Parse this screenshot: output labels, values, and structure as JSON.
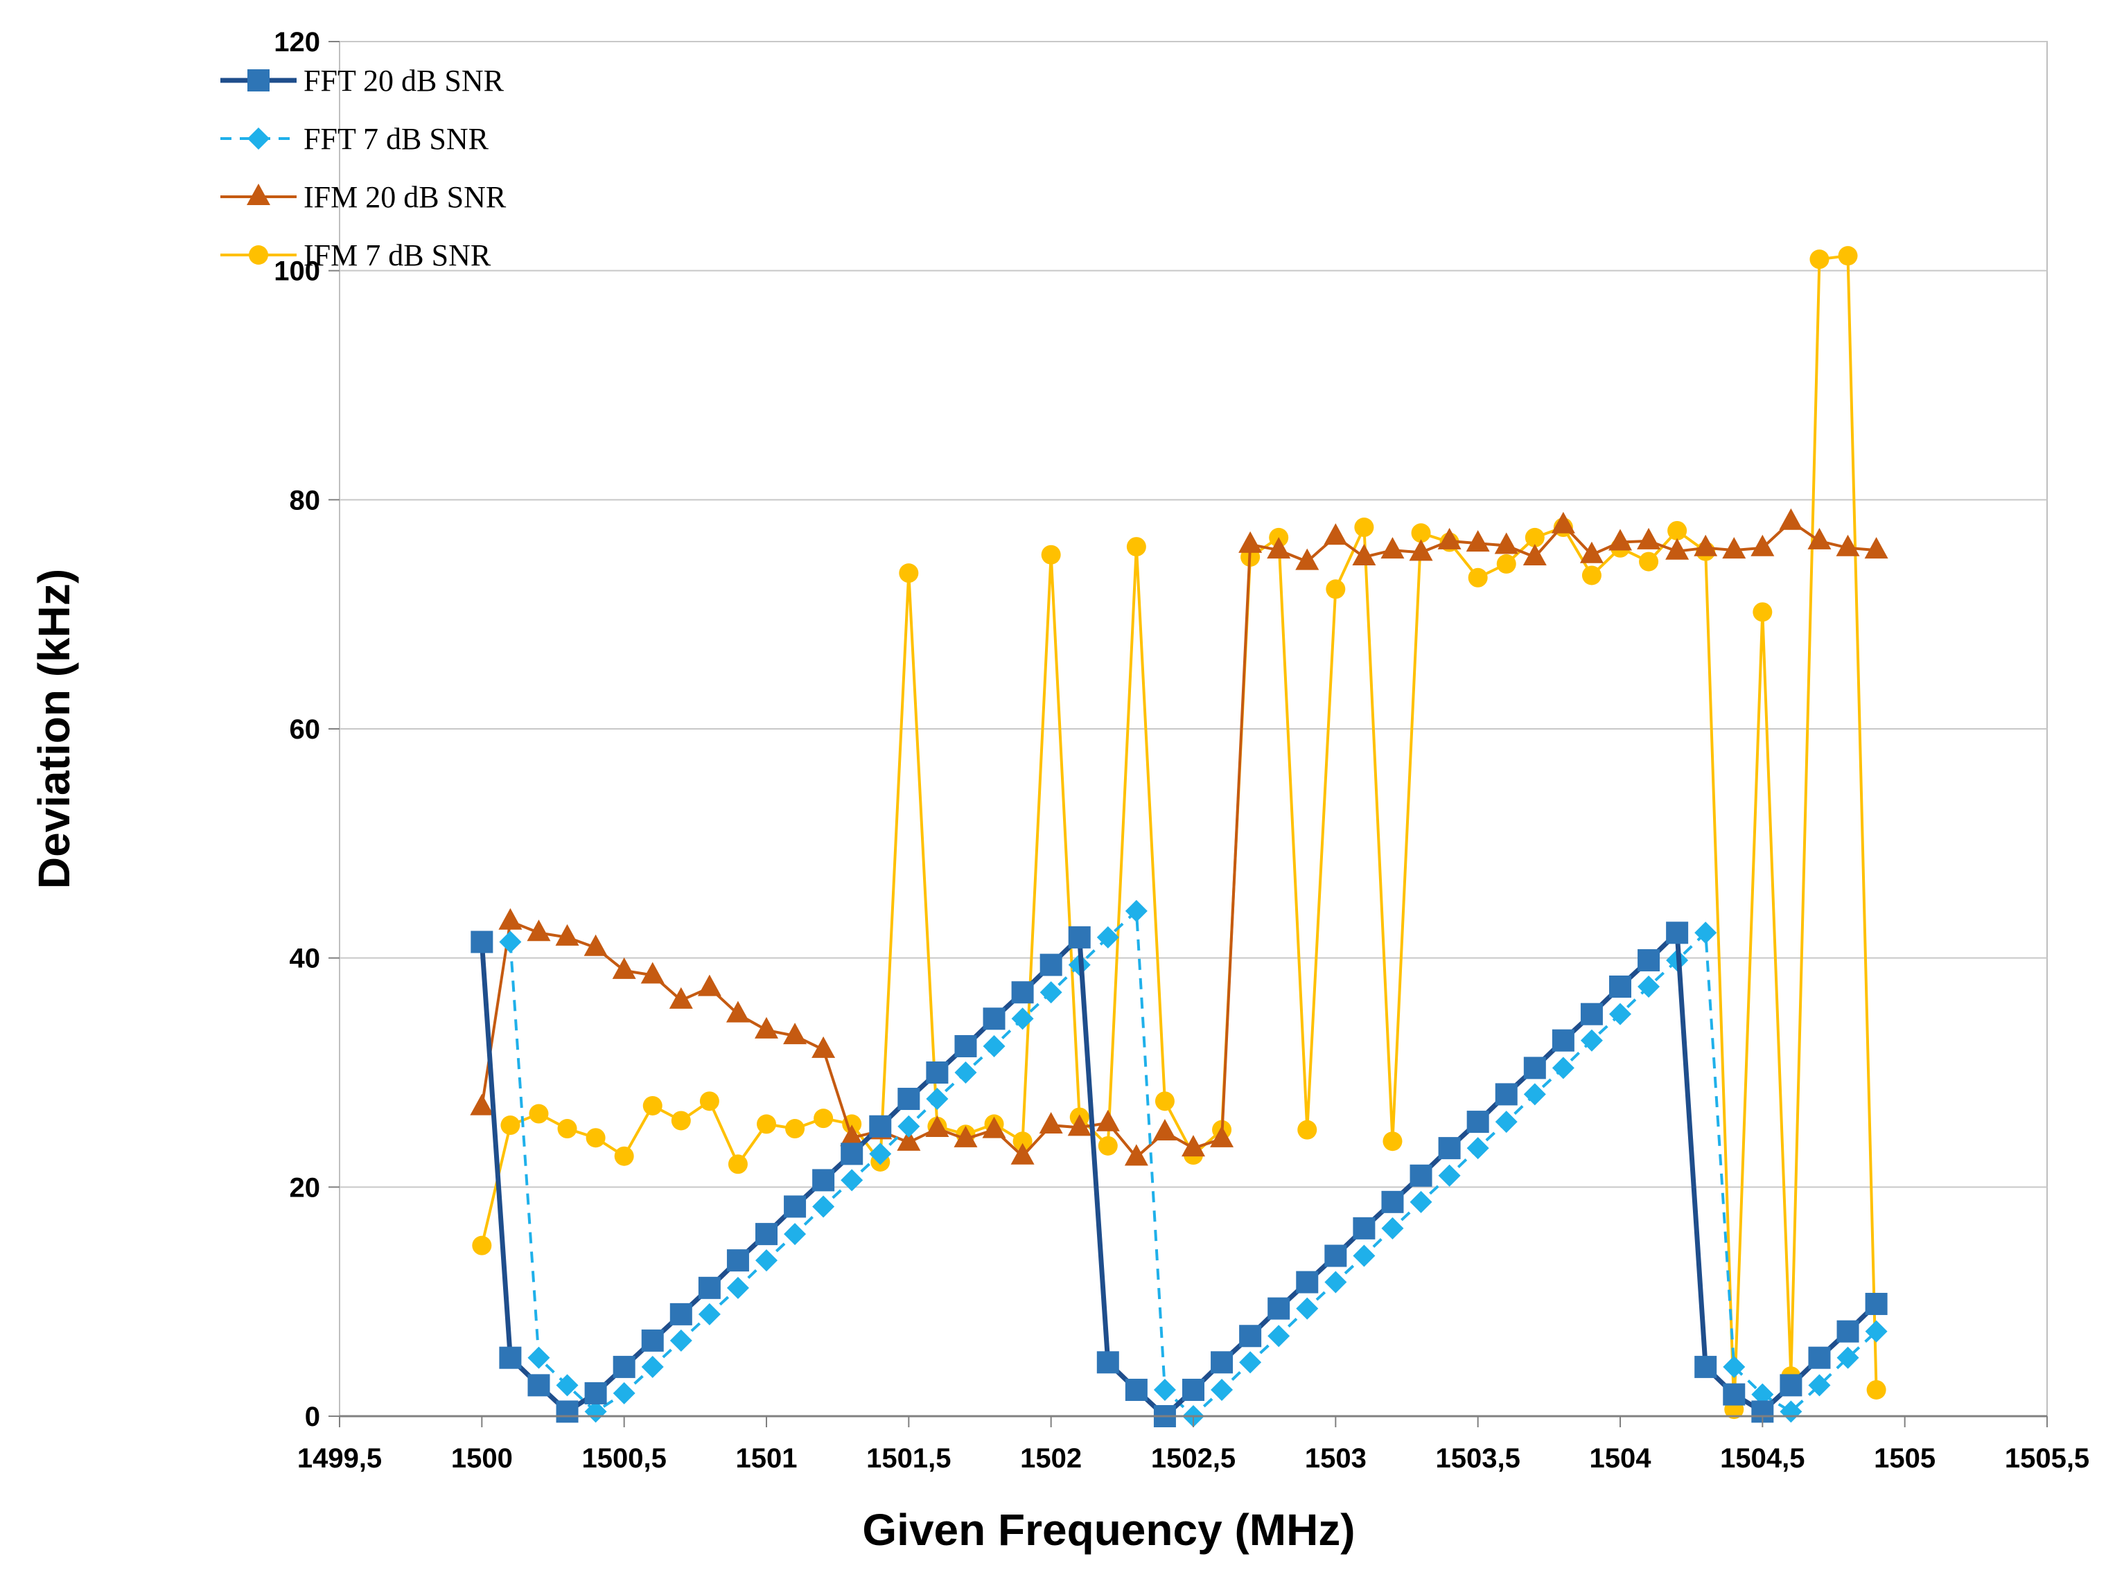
{
  "chart_data": {
    "type": "line",
    "title": "",
    "xlabel": "Given Frequency (MHz)",
    "ylabel": "Deviation (kHz)",
    "xlim": [
      1499.5,
      1505.5
    ],
    "ylim": [
      0,
      120
    ],
    "grid": "horizontal",
    "legend_position": "top-left",
    "xticks": [
      1499.5,
      1500,
      1500.5,
      1501,
      1501.5,
      1502,
      1502.5,
      1503,
      1503.5,
      1504,
      1504.5,
      1505,
      1505.5
    ],
    "xtick_labels": [
      "1499,5",
      "1500",
      "1500,5",
      "1501",
      "1501,5",
      "1502",
      "1502,5",
      "1503",
      "1503,5",
      "1504",
      "1504,5",
      "1505",
      "1505,5"
    ],
    "yticks": [
      0,
      20,
      40,
      60,
      80,
      100,
      120
    ],
    "ytick_labels": [
      "0",
      "20",
      "40",
      "60",
      "80",
      "100",
      "120"
    ],
    "x": [
      1500.0,
      1500.1,
      1500.2,
      1500.3,
      1500.4,
      1500.5,
      1500.6,
      1500.7,
      1500.8,
      1500.9,
      1501.0,
      1501.1,
      1501.2,
      1501.3,
      1501.4,
      1501.5,
      1501.6,
      1501.7,
      1501.8,
      1501.9,
      1502.0,
      1502.1,
      1502.2,
      1502.3,
      1502.4,
      1502.5,
      1502.6,
      1502.7,
      1502.8,
      1502.9,
      1503.0,
      1503.1,
      1503.2,
      1503.3,
      1503.4,
      1503.5,
      1503.6,
      1503.7,
      1503.8,
      1503.9,
      1504.0,
      1504.1,
      1504.2,
      1504.3,
      1504.4,
      1504.5,
      1504.6,
      1504.7,
      1504.8,
      1504.9
    ],
    "series": [
      {
        "name": "FFT 20 dB SNR",
        "color": "#2E75B6",
        "line_color": "#1F4E8C",
        "marker": "square",
        "dash": "solid",
        "values": [
          41.4,
          5.1,
          2.7,
          0.4,
          2.0,
          4.3,
          6.6,
          8.9,
          11.2,
          13.6,
          15.9,
          18.3,
          20.6,
          22.9,
          25.3,
          27.7,
          30.0,
          32.3,
          34.7,
          37.0,
          39.4,
          41.8,
          4.7,
          2.3,
          0.0,
          2.3,
          4.7,
          7.0,
          9.4,
          11.7,
          14.0,
          16.4,
          18.7,
          21.0,
          23.4,
          25.7,
          28.1,
          30.4,
          32.8,
          35.1,
          37.5,
          39.8,
          42.2,
          4.3,
          1.9,
          0.4,
          2.7,
          5.1,
          7.4,
          9.8
        ]
      },
      {
        "name": "FFT 7 dB SNR",
        "color": "#1FB0EA",
        "line_color": "#1FB0EA",
        "marker": "diamond",
        "dash": "dashed",
        "values": [
          null,
          41.4,
          5.1,
          2.7,
          0.4,
          2.0,
          4.3,
          6.6,
          8.9,
          11.2,
          13.6,
          15.9,
          18.3,
          20.6,
          22.9,
          25.3,
          27.7,
          30.0,
          32.3,
          34.7,
          37.0,
          39.4,
          41.8,
          44.1,
          2.3,
          0.0,
          2.3,
          4.7,
          7.0,
          9.4,
          11.7,
          14.0,
          16.4,
          18.7,
          21.0,
          23.4,
          25.7,
          28.1,
          30.4,
          32.8,
          35.1,
          37.5,
          39.8,
          42.2,
          4.3,
          1.9,
          0.4,
          2.7,
          5.1,
          7.4
        ]
      },
      {
        "name": "IFM 20 dB SNR",
        "color": "#C55A11",
        "line_color": "#C55A11",
        "marker": "triangle",
        "dash": "solid",
        "values": [
          27.0,
          43.2,
          42.2,
          41.8,
          40.9,
          38.9,
          38.5,
          36.3,
          37.4,
          35.1,
          33.7,
          33.2,
          32.0,
          24.3,
          24.9,
          23.9,
          25.1,
          24.2,
          25.0,
          22.7,
          25.4,
          25.2,
          25.6,
          22.6,
          24.8,
          23.4,
          24.2,
          76.1,
          75.6,
          74.6,
          76.8,
          75.0,
          75.6,
          75.4,
          76.4,
          76.2,
          76.0,
          75.0,
          77.8,
          75.2,
          76.3,
          76.4,
          75.5,
          75.8,
          75.6,
          75.8,
          78.1,
          76.4,
          75.8,
          75.6
        ]
      },
      {
        "name": "IFM 7 dB SNR",
        "color": "#FFC000",
        "line_color": "#FFC000",
        "marker": "circle",
        "dash": "solid",
        "values": [
          14.9,
          25.4,
          26.4,
          25.1,
          24.3,
          22.7,
          27.1,
          25.8,
          27.5,
          22.0,
          25.5,
          25.1,
          26.0,
          25.5,
          22.2,
          73.6,
          25.3,
          24.6,
          25.5,
          24.0,
          75.2,
          26.1,
          23.6,
          75.9,
          27.5,
          22.8,
          25.0,
          75.0,
          76.7,
          25.0,
          72.2,
          77.6,
          24.0,
          77.1,
          76.3,
          73.2,
          74.4,
          76.7,
          77.6,
          73.4,
          75.8,
          74.6,
          77.3,
          75.5,
          0.6,
          70.2,
          3.5,
          101.0,
          101.3,
          2.3
        ]
      }
    ]
  }
}
